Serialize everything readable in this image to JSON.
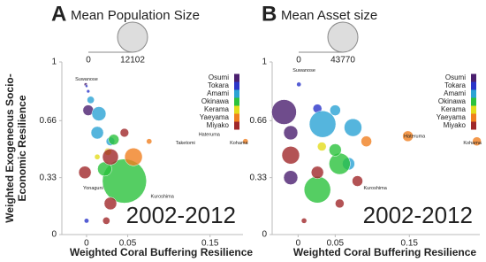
{
  "chart_data": [
    {
      "type": "bubble",
      "panel": "A",
      "title": "Mean Population Size",
      "size_legend": [
        0,
        12102
      ],
      "xlabel": "Weighted Coral Buffering Resilience",
      "ylabel": [
        "Weighted Exogeneous Socio-",
        "Economic Resilience"
      ],
      "period": "2002-2012",
      "xlim": [
        -0.03,
        0.19
      ],
      "ylim": [
        0,
        1
      ],
      "xticks": [
        0,
        0.05,
        0.15
      ],
      "yticks": [
        0,
        0.33,
        0.66,
        1
      ],
      "series": [
        {
          "name": "Osumi",
          "color": "#4b1f6f",
          "x": [
            -0.001,
            0.002
          ],
          "y": [
            0.87,
            0.72
          ],
          "sizes": [
            150,
            1500
          ]
        },
        {
          "name": "Tokara",
          "color": "#2b35c9",
          "x": [
            0.0,
            0.002,
            0.0
          ],
          "y": [
            0.86,
            0.83,
            0.08
          ],
          "sizes": [
            100,
            150,
            300
          ]
        },
        {
          "name": "Amami",
          "color": "#2aa3d4",
          "x": [
            0.015,
            0.013,
            0.005,
            0.029
          ],
          "y": [
            0.7,
            0.59,
            0.78,
            0.54
          ],
          "sizes": [
            2700,
            2100,
            700,
            1000
          ]
        },
        {
          "name": "Okinawa",
          "color": "#2bc23c",
          "x": [
            0.046,
            0.033,
            0.022
          ],
          "y": [
            0.31,
            0.55,
            0.38
          ],
          "sizes": [
            26000,
            1500,
            2700
          ]
        },
        {
          "name": "Kerama",
          "color": "#e3dc1c",
          "x": [
            0.026,
            0.013
          ],
          "y": [
            0.48,
            0.45
          ],
          "sizes": [
            700,
            400
          ]
        },
        {
          "name": "Yaeyama",
          "color": "#f08020",
          "x": [
            0.057,
            0.076,
            0.193
          ],
          "y": [
            0.45,
            0.54,
            0.54
          ],
          "sizes": [
            4200,
            400,
            400
          ]
        },
        {
          "name": "Miyako",
          "color": "#a0282a",
          "x": [
            -0.002,
            0.029,
            0.046,
            0.029,
            0.024
          ],
          "y": [
            0.36,
            0.45,
            0.59,
            0.18,
            0.08
          ],
          "sizes": [
            2100,
            3400,
            1000,
            2100,
            700
          ]
        }
      ],
      "annotations": [
        {
          "text": "Suwanose",
          "x": 0.0,
          "y": 0.9
        },
        {
          "text": "Hateruma",
          "x": 0.149,
          "y": 0.58
        },
        {
          "text": "Taketomi",
          "x": 0.12,
          "y": 0.53
        },
        {
          "text": "Kohama",
          "x": 0.185,
          "y": 0.53
        },
        {
          "text": "Kuroshima",
          "x": 0.092,
          "y": 0.22
        },
        {
          "text": "Yonaguni",
          "x": 0.008,
          "y": 0.27
        }
      ]
    },
    {
      "type": "bubble",
      "panel": "B",
      "title": "Mean Asset size",
      "size_legend": [
        0,
        43770
      ],
      "xlabel": "Weighted Coral Buffering Resilience",
      "period": "2002-2012",
      "xlim": [
        -0.035,
        0.245
      ],
      "ylim": [
        0,
        1
      ],
      "xticks": [
        0,
        0.05,
        0.15
      ],
      "yticks": [
        0,
        0.33,
        0.66,
        1
      ],
      "series": [
        {
          "name": "Osumi",
          "color": "#4b1f6f",
          "x": [
            -0.019,
            -0.01,
            -0.01
          ],
          "y": [
            0.71,
            0.59,
            0.33
          ],
          "sizes": [
            29700,
            9700,
            9700
          ]
        },
        {
          "name": "Tokara",
          "color": "#2b35c9",
          "x": [
            0.001,
            0.026
          ],
          "y": [
            0.87,
            0.73
          ],
          "sizes": [
            1000,
            3800
          ]
        },
        {
          "name": "Amami",
          "color": "#2aa3d4",
          "x": [
            0.033,
            0.05,
            0.074,
            0.068
          ],
          "y": [
            0.64,
            0.72,
            0.62,
            0.41
          ],
          "sizes": [
            34100,
            5500,
            15100,
            7400
          ]
        },
        {
          "name": "Okinawa",
          "color": "#2bc23c",
          "x": [
            0.056,
            0.026,
            0.05
          ],
          "y": [
            0.41,
            0.26,
            0.49
          ],
          "sizes": [
            21800,
            34100,
            7400
          ]
        },
        {
          "name": "Kerama",
          "color": "#e3dc1c",
          "x": [
            0.032
          ],
          "y": [
            0.51
          ],
          "sizes": [
            3800
          ]
        },
        {
          "name": "Yaeyama",
          "color": "#f08020",
          "x": [
            0.092,
            0.148,
            0.241
          ],
          "y": [
            0.54,
            0.57,
            0.54
          ],
          "sizes": [
            5500,
            5500,
            3800
          ]
        },
        {
          "name": "Miyako",
          "color": "#a0282a",
          "x": [
            -0.01,
            0.026,
            0.08,
            0.056,
            0.008
          ],
          "y": [
            0.46,
            0.36,
            0.31,
            0.18,
            0.08
          ],
          "sizes": [
            15100,
            7400,
            5500,
            3800,
            1400
          ]
        }
      ],
      "annotations": [
        {
          "text": "Suwanose",
          "x": 0.008,
          "y": 0.95
        },
        {
          "text": "Hateruma",
          "x": 0.157,
          "y": 0.57
        },
        {
          "text": "Kuroshima",
          "x": 0.104,
          "y": 0.27
        },
        {
          "text": "Kohama",
          "x": 0.235,
          "y": 0.53
        }
      ]
    }
  ]
}
